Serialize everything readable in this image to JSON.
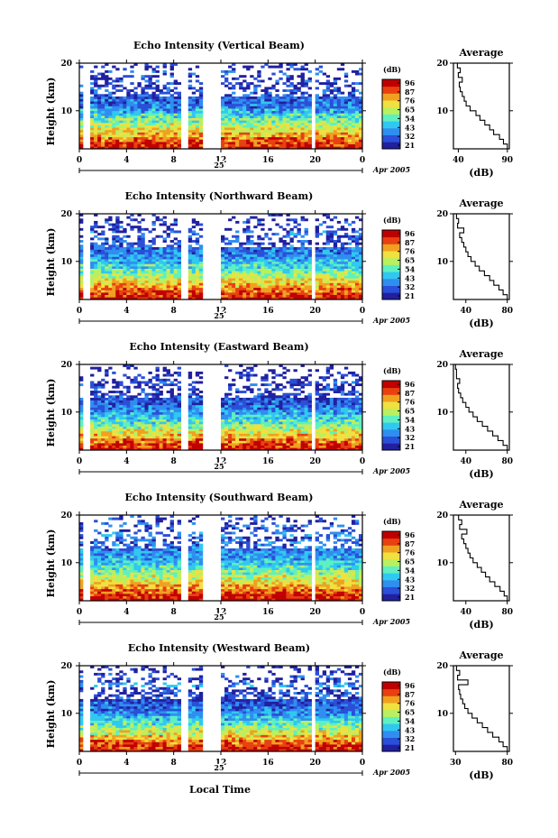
{
  "figure": {
    "xlabel": "Local Time",
    "date_day": "25",
    "date_label": "Apr 2005"
  },
  "colors": {
    "colormap": [
      "#2020a0",
      "#2a4fd8",
      "#2f8ef0",
      "#30c8f0",
      "#5ef0c0",
      "#b8f060",
      "#f0e040",
      "#f0a020",
      "#e84010",
      "#c00000"
    ],
    "gap": "#ffffff"
  },
  "chart_data": [
    {
      "type": "heatmap",
      "title": "Echo Intensity (Vertical Beam)",
      "ylabel": "Height (km)",
      "x_ticks": [
        "0",
        "4",
        "8",
        "12",
        "16",
        "20",
        "0"
      ],
      "xlim": [
        0,
        24
      ],
      "y_ticks": [
        "20",
        "10"
      ],
      "ylim": [
        2,
        20
      ],
      "colorbar_label": "(dB)",
      "colorbar_ticks": [
        "96",
        "87",
        "76",
        "65",
        "54",
        "43",
        "32",
        "21"
      ],
      "data_gaps_hours": [
        [
          0.2,
          1.0
        ],
        [
          8.7,
          9.2
        ],
        [
          10.6,
          11.9
        ],
        [
          19.8,
          20.1
        ]
      ],
      "profile": {
        "title": "Average",
        "xlabel": "(dB)",
        "x_ticks": [
          "40",
          "90"
        ],
        "xlim": [
          35,
          92
        ],
        "y_ticks": [
          "20",
          "10"
        ],
        "heights_km": [
          2,
          3,
          4,
          5,
          6,
          7,
          8,
          9,
          10,
          11,
          12,
          13,
          14,
          15,
          16,
          17,
          18,
          19,
          20
        ],
        "values_db": [
          90,
          86,
          82,
          76,
          72,
          67,
          62,
          58,
          52,
          48,
          46,
          44,
          42,
          41,
          44,
          40,
          42,
          39,
          38
        ]
      }
    },
    {
      "type": "heatmap",
      "title": "Echo Intensity (Northward Beam)",
      "ylabel": "Height (km)",
      "x_ticks": [
        "0",
        "4",
        "8",
        "12",
        "16",
        "20",
        "0"
      ],
      "xlim": [
        0,
        24
      ],
      "y_ticks": [
        "20",
        "10"
      ],
      "ylim": [
        2,
        20
      ],
      "colorbar_label": "(dB)",
      "colorbar_ticks": [
        "96",
        "87",
        "76",
        "65",
        "54",
        "43",
        "32",
        "21"
      ],
      "data_gaps_hours": [
        [
          0.2,
          1.0
        ],
        [
          8.7,
          9.2
        ],
        [
          10.6,
          11.9
        ],
        [
          19.8,
          20.1
        ]
      ],
      "profile": {
        "title": "Average",
        "xlabel": "(dB)",
        "x_ticks": [
          "40",
          "80"
        ],
        "xlim": [
          28,
          82
        ],
        "y_ticks": [
          "20",
          "10"
        ],
        "heights_km": [
          2,
          3,
          4,
          5,
          6,
          7,
          8,
          9,
          10,
          11,
          12,
          13,
          14,
          15,
          16,
          17,
          18,
          19,
          20
        ],
        "values_db": [
          80,
          76,
          72,
          67,
          63,
          58,
          53,
          49,
          45,
          42,
          40,
          38,
          36,
          34,
          38,
          32,
          33,
          31,
          30
        ]
      }
    },
    {
      "type": "heatmap",
      "title": "Echo Intensity (Eastward Beam)",
      "ylabel": "Height (km)",
      "x_ticks": [
        "0",
        "4",
        "8",
        "12",
        "16",
        "20",
        "0"
      ],
      "xlim": [
        0,
        24
      ],
      "y_ticks": [
        "20",
        "10"
      ],
      "ylim": [
        2,
        20
      ],
      "colorbar_label": "(dB)",
      "colorbar_ticks": [
        "96",
        "87",
        "76",
        "65",
        "54",
        "43",
        "32",
        "21"
      ],
      "data_gaps_hours": [
        [
          0.2,
          1.0
        ],
        [
          8.7,
          9.2
        ],
        [
          10.6,
          11.9
        ],
        [
          19.8,
          20.1
        ]
      ],
      "profile": {
        "title": "Average",
        "xlabel": "(dB)",
        "x_ticks": [
          "40",
          "80"
        ],
        "xlim": [
          28,
          82
        ],
        "y_ticks": [
          "20",
          "10"
        ],
        "heights_km": [
          2,
          3,
          4,
          5,
          6,
          7,
          8,
          9,
          10,
          11,
          12,
          13,
          14,
          15,
          16,
          17,
          18,
          19,
          20
        ],
        "values_db": [
          80,
          76,
          71,
          66,
          61,
          56,
          51,
          47,
          43,
          40,
          37,
          35,
          33,
          32,
          34,
          31,
          31,
          30,
          30
        ]
      }
    },
    {
      "type": "heatmap",
      "title": "Echo Intensity (Southward Beam)",
      "ylabel": "Height (km)",
      "x_ticks": [
        "0",
        "4",
        "8",
        "12",
        "16",
        "20",
        "0"
      ],
      "xlim": [
        0,
        24
      ],
      "y_ticks": [
        "20",
        "10"
      ],
      "ylim": [
        2,
        20
      ],
      "colorbar_label": "(dB)",
      "colorbar_ticks": [
        "96",
        "87",
        "76",
        "65",
        "54",
        "43",
        "32",
        "21"
      ],
      "data_gaps_hours": [
        [
          0.2,
          1.0
        ],
        [
          8.7,
          9.2
        ],
        [
          10.6,
          11.9
        ],
        [
          19.8,
          20.1
        ]
      ],
      "profile": {
        "title": "Average",
        "xlabel": "(dB)",
        "x_ticks": [
          "40",
          "80"
        ],
        "xlim": [
          28,
          82
        ],
        "y_ticks": [
          "20",
          "10"
        ],
        "heights_km": [
          2,
          3,
          4,
          5,
          6,
          7,
          8,
          9,
          10,
          11,
          12,
          13,
          14,
          15,
          16,
          17,
          18,
          19,
          20
        ],
        "values_db": [
          80,
          77,
          73,
          68,
          63,
          59,
          55,
          51,
          47,
          44,
          42,
          40,
          38,
          36,
          41,
          34,
          36,
          33,
          32
        ]
      }
    },
    {
      "type": "heatmap",
      "title": "Echo Intensity (Westward Beam)",
      "ylabel": "Height (km)",
      "x_ticks": [
        "0",
        "4",
        "8",
        "12",
        "16",
        "20",
        "0"
      ],
      "xlim": [
        0,
        24
      ],
      "y_ticks": [
        "20",
        "10"
      ],
      "ylim": [
        2,
        20
      ],
      "colorbar_label": "(dB)",
      "colorbar_ticks": [
        "96",
        "87",
        "76",
        "65",
        "54",
        "43",
        "32",
        "21"
      ],
      "data_gaps_hours": [
        [
          0.2,
          1.0
        ],
        [
          8.7,
          9.2
        ],
        [
          10.6,
          11.9
        ],
        [
          19.8,
          20.1
        ]
      ],
      "profile": {
        "title": "Average",
        "xlabel": "(dB)",
        "x_ticks": [
          "30",
          "80"
        ],
        "xlim": [
          28,
          82
        ],
        "y_ticks": [
          "20",
          "10"
        ],
        "heights_km": [
          2,
          3,
          4,
          5,
          6,
          7,
          8,
          9,
          10,
          11,
          12,
          13,
          14,
          15,
          16,
          17,
          18,
          19,
          20
        ],
        "values_db": [
          80,
          76,
          72,
          66,
          61,
          56,
          51,
          46,
          42,
          39,
          37,
          35,
          34,
          33,
          42,
          32,
          34,
          31,
          30
        ]
      }
    }
  ]
}
